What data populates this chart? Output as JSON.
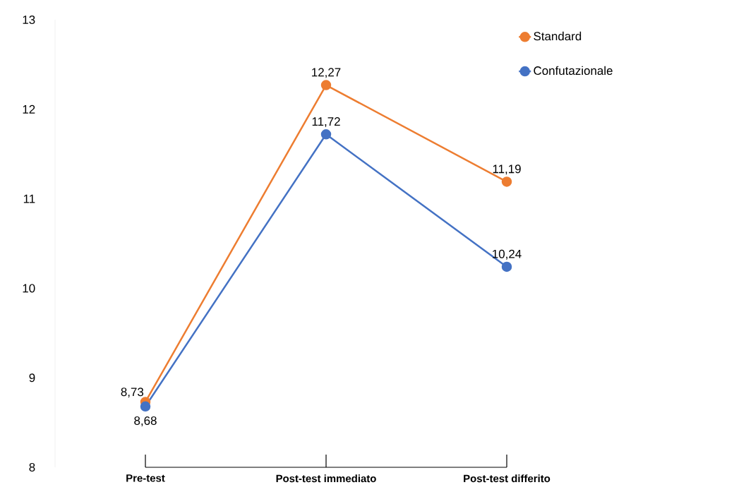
{
  "chart_data": {
    "type": "line",
    "categories": [
      "Pre-test",
      "Post-test  immediato",
      "Post-test  differito"
    ],
    "series": [
      {
        "name": "Standard",
        "color": "#ed7d31",
        "values": [
          8.73,
          12.27,
          11.19
        ],
        "value_labels": [
          "8,73",
          "12,27",
          "11,19"
        ]
      },
      {
        "name": "Confutazionale",
        "color": "#4472c4",
        "values": [
          8.68,
          11.72,
          10.24
        ],
        "value_labels": [
          "8,68",
          "11,72",
          "10,24"
        ]
      }
    ],
    "ylim": [
      8,
      13
    ],
    "yticks": [
      8,
      9,
      10,
      11,
      12,
      13
    ],
    "grid": false,
    "legend": "top right",
    "marker": "circle",
    "line_style": "solid"
  }
}
